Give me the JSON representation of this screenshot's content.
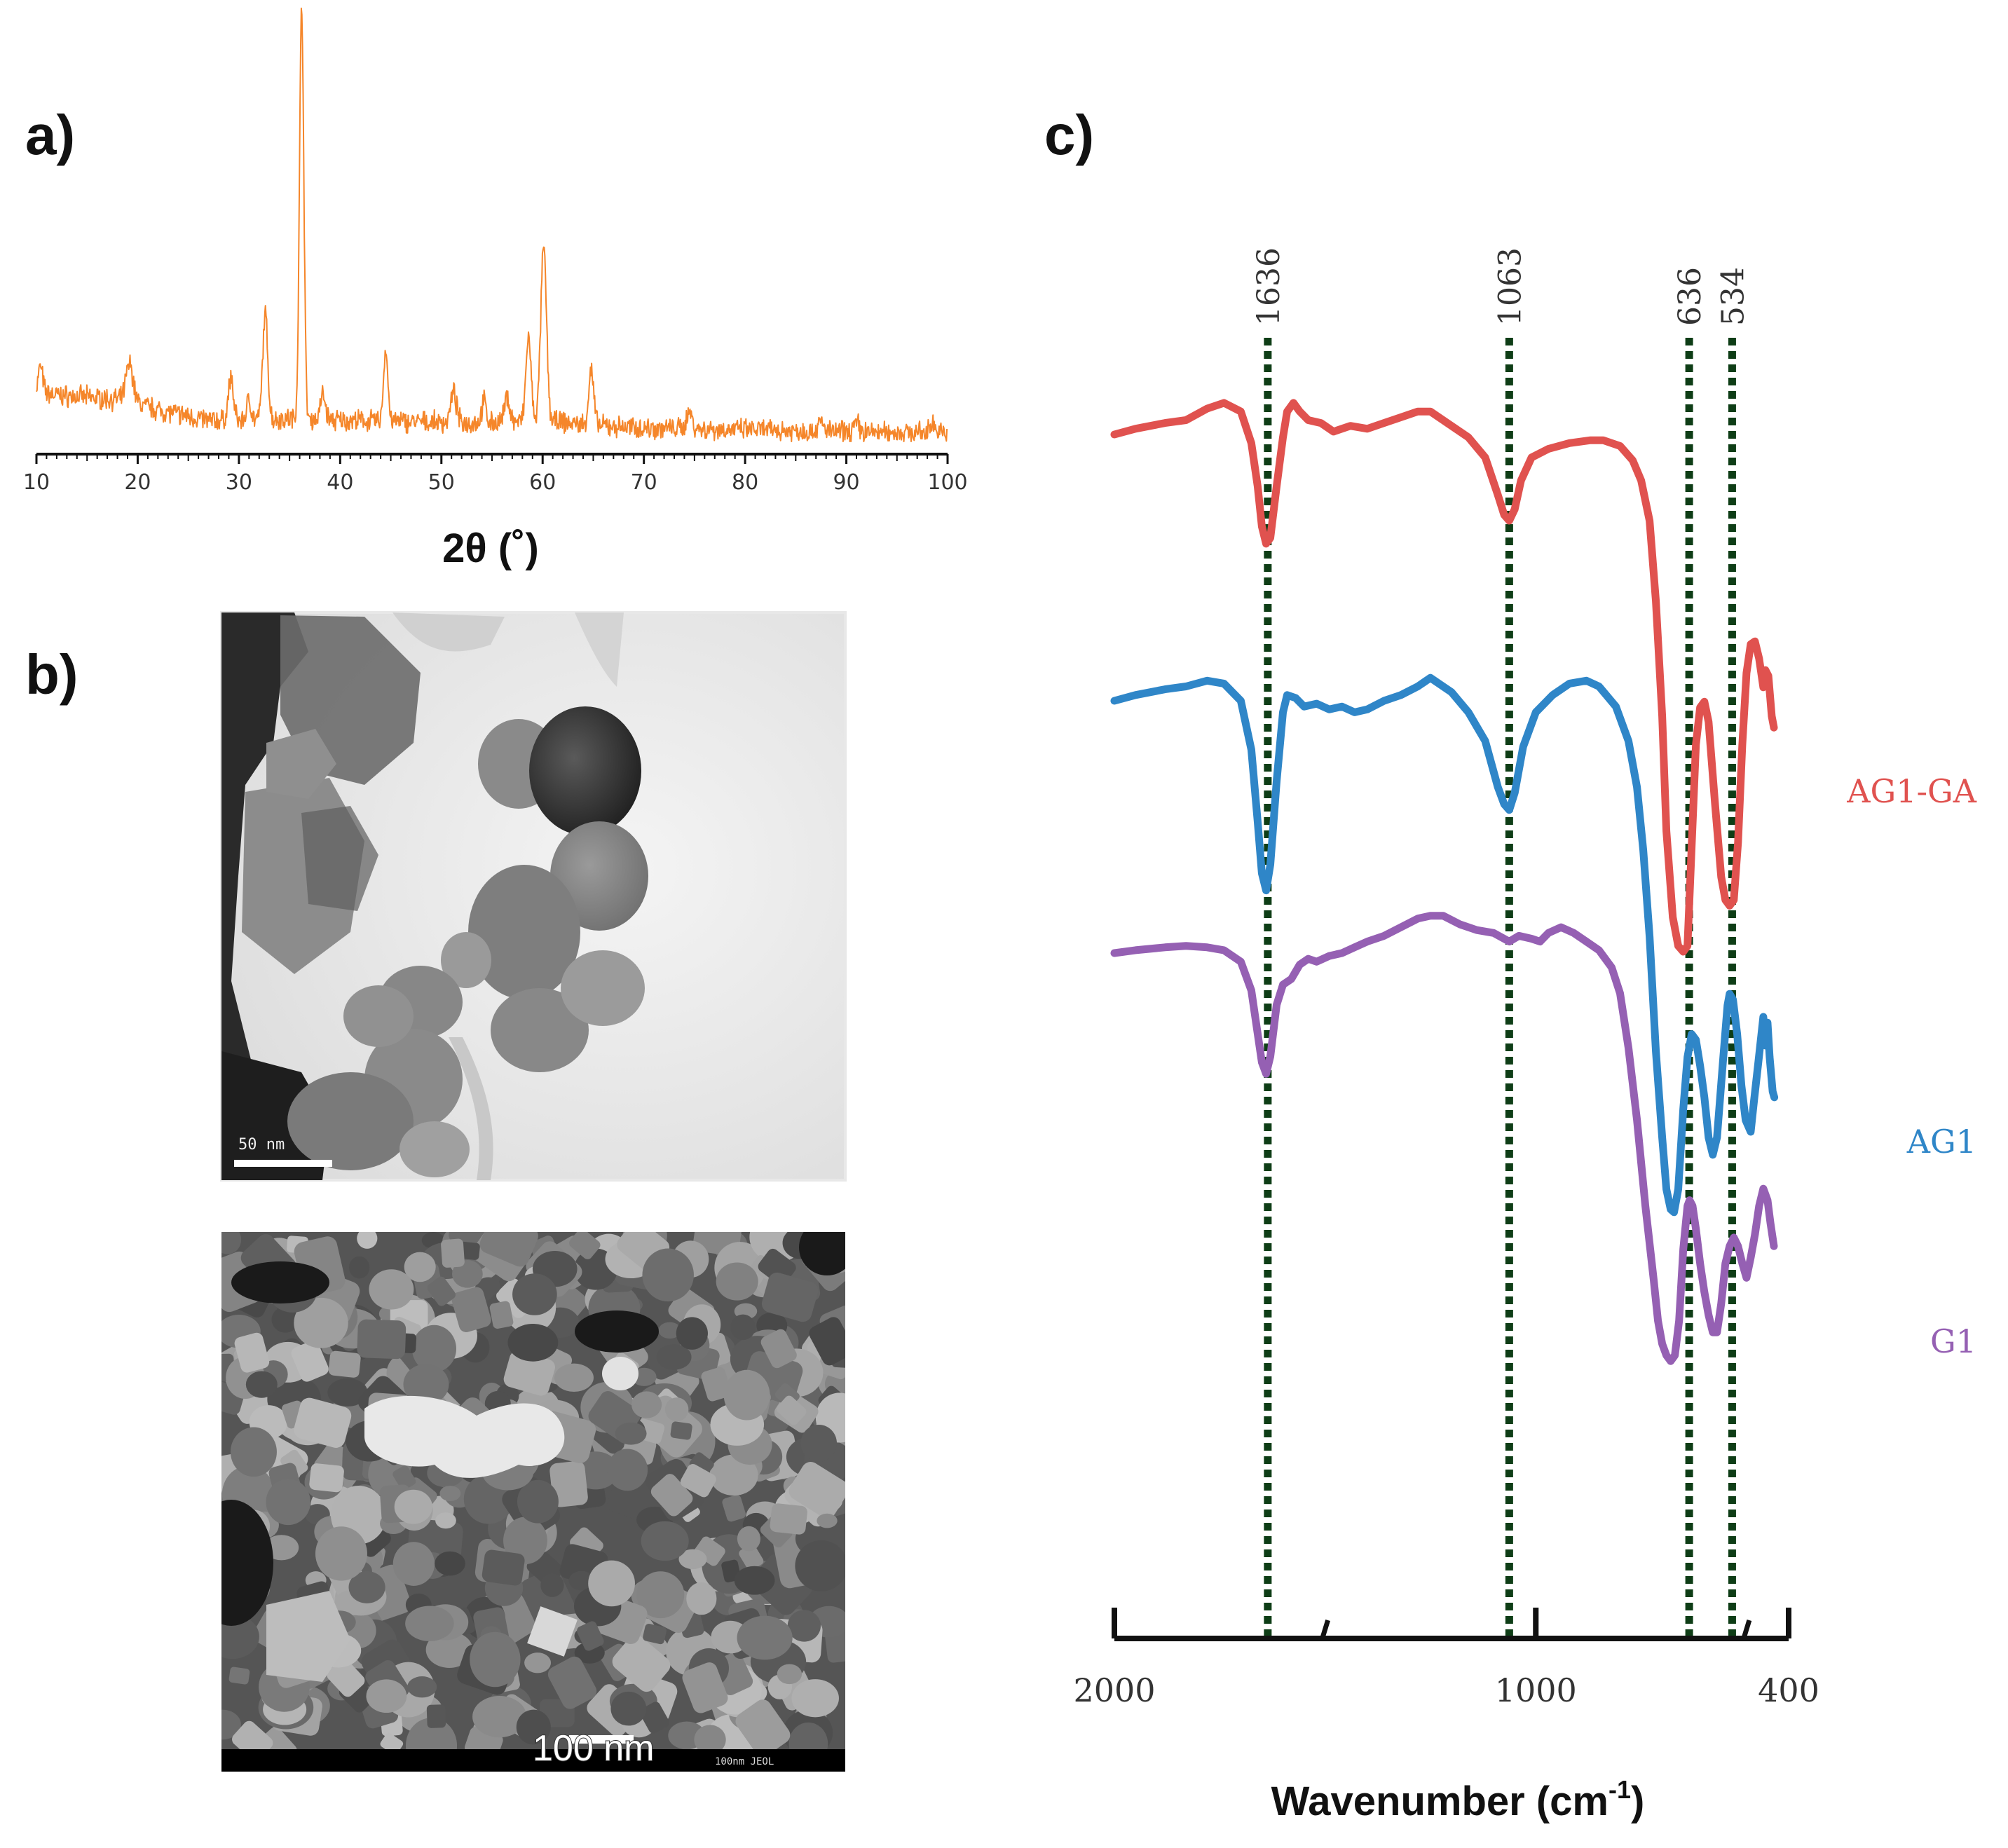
{
  "panels": {
    "a": {
      "label": "a)"
    },
    "b": {
      "label": "b)"
    },
    "c": {
      "label": "c)"
    }
  },
  "tem": {
    "scale_label": "50 nm"
  },
  "sem": {
    "scale_label": "100 nm",
    "footer_text": "100nm JEOL"
  },
  "colors": {
    "xrd": "#f5862a",
    "ag1_ga": "#e0524f",
    "ag1": "#2f86c8",
    "g1": "#9560b3",
    "peak_lines": "#0e3d16",
    "axis": "#111111"
  },
  "chart_data": [
    {
      "id": "xrd",
      "type": "line",
      "title": "",
      "xlabel": "2θ (˚)",
      "ylabel": "",
      "xlim": [
        10,
        100
      ],
      "ylim": [
        0,
        100
      ],
      "xticks": [
        10,
        20,
        30,
        40,
        50,
        60,
        70,
        80,
        90,
        100
      ],
      "yticks_visible": false,
      "baseline": [
        [
          10,
          12
        ],
        [
          12,
          11
        ],
        [
          15,
          10.5
        ],
        [
          18,
          10
        ],
        [
          20,
          9
        ],
        [
          22,
          7.5
        ],
        [
          25,
          6
        ],
        [
          27,
          5
        ],
        [
          30,
          5
        ],
        [
          35,
          5.5
        ],
        [
          40,
          5
        ],
        [
          45,
          4.8
        ],
        [
          50,
          4.5
        ],
        [
          55,
          4.5
        ],
        [
          60,
          5
        ],
        [
          65,
          3.8
        ],
        [
          70,
          3.2
        ],
        [
          80,
          2.8
        ],
        [
          90,
          2.3
        ],
        [
          100,
          2.0
        ]
      ],
      "peaks": [
        {
          "x": 10.4,
          "height": 6,
          "width": 0.3
        },
        {
          "x": 19.2,
          "height": 9,
          "width": 0.5
        },
        {
          "x": 29.2,
          "height": 10,
          "width": 0.35
        },
        {
          "x": 31.0,
          "height": 5,
          "width": 0.3
        },
        {
          "x": 32.6,
          "height": 25,
          "width": 0.35
        },
        {
          "x": 36.2,
          "height": 98,
          "width": 0.3
        },
        {
          "x": 38.3,
          "height": 6,
          "width": 0.35
        },
        {
          "x": 44.5,
          "height": 17,
          "width": 0.3
        },
        {
          "x": 51.2,
          "height": 7,
          "width": 0.4
        },
        {
          "x": 54.2,
          "height": 5,
          "width": 0.3
        },
        {
          "x": 56.5,
          "height": 6,
          "width": 0.35
        },
        {
          "x": 58.6,
          "height": 20,
          "width": 0.35
        },
        {
          "x": 60.1,
          "height": 41,
          "width": 0.4
        },
        {
          "x": 64.8,
          "height": 13,
          "width": 0.35
        },
        {
          "x": 74.5,
          "height": 4,
          "width": 0.4
        },
        {
          "x": 87.5,
          "height": 2,
          "width": 0.4
        },
        {
          "x": 91.0,
          "height": 2,
          "width": 0.4
        },
        {
          "x": 98.5,
          "height": 3,
          "width": 0.3
        }
      ],
      "noise_amplitude": 2.0,
      "grid": false
    },
    {
      "id": "ftir",
      "type": "line",
      "title": "",
      "xlabel": "Wavenumber (cm⁻¹)",
      "xlabel_main": "Wavenumber (cm",
      "xlabel_sup": "-1",
      "xlabel_close": ")",
      "ylabel": "",
      "xlim": [
        2000,
        400
      ],
      "ylim": [
        -140,
        110
      ],
      "xticks": [
        2000,
        1000,
        400
      ],
      "minor_ticks": [
        1500,
        500
      ],
      "x_reversed": true,
      "grid": false,
      "peak_markers": [
        1636,
        1063,
        636,
        534
      ],
      "peak_labels": [
        "1636",
        "1063",
        "636",
        "534"
      ],
      "series": [
        {
          "name": "AG1-GA",
          "color_key": "ag1_ga",
          "points": [
            [
              2000,
              88
            ],
            [
              1950,
              90
            ],
            [
              1880,
              92
            ],
            [
              1830,
              93
            ],
            [
              1780,
              97
            ],
            [
              1740,
              99
            ],
            [
              1700,
              96
            ],
            [
              1675,
              85
            ],
            [
              1660,
              70
            ],
            [
              1650,
              56
            ],
            [
              1640,
              50
            ],
            [
              1630,
              52
            ],
            [
              1615,
              70
            ],
            [
              1600,
              87
            ],
            [
              1590,
              96
            ],
            [
              1575,
              99
            ],
            [
              1560,
              96
            ],
            [
              1540,
              93
            ],
            [
              1510,
              92
            ],
            [
              1480,
              89
            ],
            [
              1440,
              91
            ],
            [
              1400,
              90
            ],
            [
              1360,
              92
            ],
            [
              1320,
              94
            ],
            [
              1280,
              96
            ],
            [
              1250,
              96
            ],
            [
              1230,
              94
            ],
            [
              1200,
              91
            ],
            [
              1160,
              87
            ],
            [
              1120,
              80
            ],
            [
              1090,
              67
            ],
            [
              1075,
              60
            ],
            [
              1063,
              58
            ],
            [
              1050,
              62
            ],
            [
              1035,
              72
            ],
            [
              1010,
              80
            ],
            [
              970,
              83
            ],
            [
              920,
              85
            ],
            [
              870,
              86
            ],
            [
              840,
              86
            ],
            [
              800,
              84
            ],
            [
              770,
              79
            ],
            [
              750,
              72
            ],
            [
              730,
              58
            ],
            [
              715,
              30
            ],
            [
              700,
              -10
            ],
            [
              690,
              -50
            ],
            [
              675,
              -80
            ],
            [
              662,
              -90
            ],
            [
              650,
              -92
            ],
            [
              640,
              -90
            ],
            [
              630,
              -55
            ],
            [
              620,
              -20
            ],
            [
              610,
              -7
            ],
            [
              600,
              -5
            ],
            [
              590,
              -12
            ],
            [
              575,
              -40
            ],
            [
              560,
              -66
            ],
            [
              550,
              -74
            ],
            [
              540,
              -76
            ],
            [
              530,
              -74
            ],
            [
              520,
              -54
            ],
            [
              510,
              -20
            ],
            [
              500,
              5
            ],
            [
              490,
              15
            ],
            [
              480,
              16
            ],
            [
              470,
              10
            ],
            [
              460,
              0
            ],
            [
              455,
              6
            ],
            [
              448,
              4
            ],
            [
              440,
              -10
            ],
            [
              435,
              -14
            ]
          ]
        },
        {
          "name": "AG1",
          "color_key": "ag1",
          "points": [
            [
              2000,
              42
            ],
            [
              1950,
              44
            ],
            [
              1880,
              46
            ],
            [
              1830,
              47
            ],
            [
              1780,
              49
            ],
            [
              1740,
              48
            ],
            [
              1700,
              42
            ],
            [
              1675,
              25
            ],
            [
              1660,
              0
            ],
            [
              1650,
              -18
            ],
            [
              1640,
              -24
            ],
            [
              1630,
              -15
            ],
            [
              1615,
              14
            ],
            [
              1600,
              38
            ],
            [
              1590,
              44
            ],
            [
              1570,
              43
            ],
            [
              1550,
              40
            ],
            [
              1520,
              41
            ],
            [
              1490,
              39
            ],
            [
              1460,
              40
            ],
            [
              1430,
              38
            ],
            [
              1400,
              39
            ],
            [
              1360,
              42
            ],
            [
              1320,
              44
            ],
            [
              1280,
              47
            ],
            [
              1250,
              50
            ],
            [
              1230,
              48
            ],
            [
              1200,
              45
            ],
            [
              1160,
              38
            ],
            [
              1120,
              28
            ],
            [
              1090,
              12
            ],
            [
              1075,
              6
            ],
            [
              1063,
              4
            ],
            [
              1050,
              10
            ],
            [
              1030,
              26
            ],
            [
              1000,
              38
            ],
            [
              960,
              44
            ],
            [
              920,
              48
            ],
            [
              880,
              49
            ],
            [
              850,
              47
            ],
            [
              810,
              40
            ],
            [
              780,
              28
            ],
            [
              760,
              12
            ],
            [
              745,
              -10
            ],
            [
              730,
              -40
            ],
            [
              715,
              -80
            ],
            [
              700,
              -110
            ],
            [
              690,
              -128
            ],
            [
              680,
              -135
            ],
            [
              672,
              -136
            ],
            [
              662,
              -128
            ],
            [
              650,
              -100
            ],
            [
              640,
              -82
            ],
            [
              630,
              -74
            ],
            [
              620,
              -76
            ],
            [
              610,
              -85
            ],
            [
              600,
              -96
            ],
            [
              590,
              -110
            ],
            [
              580,
              -116
            ],
            [
              570,
              -110
            ],
            [
              555,
              -82
            ],
            [
              545,
              -64
            ],
            [
              540,
              -60
            ],
            [
              532,
              -62
            ],
            [
              522,
              -74
            ],
            [
              512,
              -92
            ],
            [
              502,
              -104
            ],
            [
              490,
              -108
            ],
            [
              482,
              -97
            ],
            [
              472,
              -84
            ],
            [
              460,
              -68
            ],
            [
              455,
              -78
            ],
            [
              450,
              -70
            ],
            [
              445,
              -82
            ],
            [
              438,
              -94
            ],
            [
              434,
              -96
            ]
          ]
        },
        {
          "name": "G1",
          "color_key": "g1",
          "points": [
            [
              2000,
              8
            ],
            [
              1950,
              9
            ],
            [
              1880,
              10
            ],
            [
              1830,
              10.5
            ],
            [
              1780,
              10
            ],
            [
              1740,
              9
            ],
            [
              1700,
              5
            ],
            [
              1675,
              -5
            ],
            [
              1660,
              -20
            ],
            [
              1650,
              -30
            ],
            [
              1640,
              -34
            ],
            [
              1630,
              -28
            ],
            [
              1615,
              -10
            ],
            [
              1600,
              -3
            ],
            [
              1580,
              -1
            ],
            [
              1560,
              4
            ],
            [
              1540,
              6
            ],
            [
              1520,
              5
            ],
            [
              1490,
              7
            ],
            [
              1460,
              8
            ],
            [
              1430,
              10
            ],
            [
              1400,
              12
            ],
            [
              1360,
              14
            ],
            [
              1320,
              17
            ],
            [
              1280,
              20
            ],
            [
              1250,
              21
            ],
            [
              1220,
              21
            ],
            [
              1180,
              18
            ],
            [
              1140,
              16
            ],
            [
              1100,
              15
            ],
            [
              1063,
              12
            ],
            [
              1040,
              14
            ],
            [
              1010,
              13
            ],
            [
              990,
              12
            ],
            [
              970,
              15
            ],
            [
              940,
              17
            ],
            [
              910,
              15
            ],
            [
              880,
              12
            ],
            [
              850,
              9
            ],
            [
              820,
              3
            ],
            [
              800,
              -6
            ],
            [
              780,
              -25
            ],
            [
              760,
              -50
            ],
            [
              740,
              -80
            ],
            [
              720,
              -106
            ],
            [
              710,
              -120
            ],
            [
              700,
              -128
            ],
            [
              690,
              -132
            ],
            [
              680,
              -134
            ],
            [
              670,
              -132
            ],
            [
              660,
              -120
            ],
            [
              650,
              -95
            ],
            [
              640,
              -80
            ],
            [
              635,
              -78
            ],
            [
              628,
              -80
            ],
            [
              620,
              -88
            ],
            [
              610,
              -100
            ],
            [
              600,
              -110
            ],
            [
              590,
              -118
            ],
            [
              580,
              -124
            ],
            [
              570,
              -124
            ],
            [
              560,
              -114
            ],
            [
              550,
              -100
            ],
            [
              540,
              -94
            ],
            [
              530,
              -91
            ],
            [
              520,
              -94
            ],
            [
              510,
              -100
            ],
            [
              500,
              -105
            ],
            [
              490,
              -98
            ],
            [
              480,
              -90
            ],
            [
              470,
              -80
            ],
            [
              460,
              -74
            ],
            [
              450,
              -78
            ],
            [
              443,
              -86
            ],
            [
              435,
              -94
            ]
          ]
        }
      ]
    }
  ]
}
